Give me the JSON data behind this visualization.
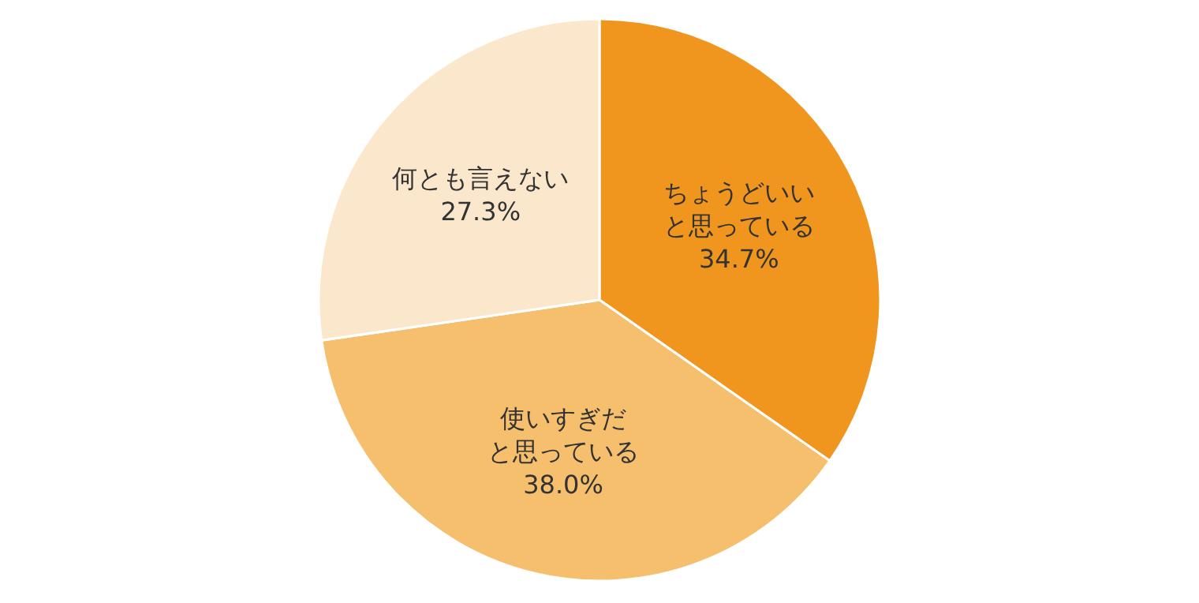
{
  "chart_data": {
    "type": "pie",
    "categories": [
      "ちょうどいいと思っている",
      "使いすぎだと思っている",
      "何とも言えない"
    ],
    "values": [
      34.7,
      38.0,
      27.3
    ],
    "value_labels": [
      "34.7%",
      "38.0%",
      "27.3%"
    ],
    "colors": [
      "#f0961e",
      "#f5bf6e",
      "#fbe8cc"
    ]
  }
}
